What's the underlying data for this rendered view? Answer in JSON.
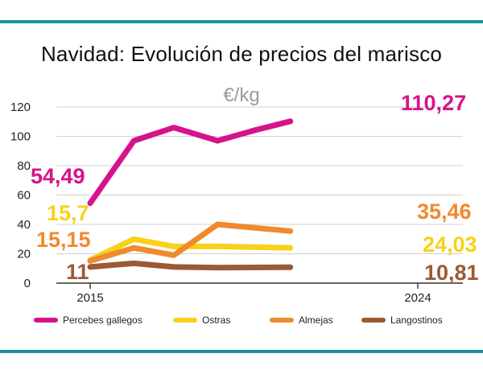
{
  "title": "Navidad: Evolución de precios del marisco",
  "colors": {
    "accent_rule": "#1e8fa0",
    "percebes": "#d6138c",
    "ostras": "#f7d21a",
    "almejas": "#ef8a2d",
    "langostinos": "#9b5a33"
  },
  "chart_data": {
    "type": "line",
    "title": "Navidad: Evolución de precios del marisco",
    "unit_label": "€/kg",
    "x_tick_labels": [
      "2015",
      "2024"
    ],
    "x": [
      2015,
      2016,
      2017,
      2018,
      2019,
      2020,
      2021,
      2022,
      2023,
      2024
    ],
    "ylim": [
      0,
      120
    ],
    "yticks": [
      0,
      20,
      40,
      60,
      80,
      100,
      120
    ],
    "grid": true,
    "legend_position": "bottom",
    "series": [
      {
        "key": "percebes",
        "name": "Percebes gallegos",
        "color": "#d6138c",
        "points": [
          [
            2015,
            54.49
          ],
          [
            2016.2,
            97
          ],
          [
            2017.3,
            106
          ],
          [
            2018.5,
            97
          ],
          [
            2019.5,
            104
          ],
          [
            2020.5,
            110.27
          ]
        ],
        "start_label": "54,49",
        "end_label": "110,27"
      },
      {
        "key": "ostras",
        "name": "Ostras",
        "color": "#f7d21a",
        "points": [
          [
            2015,
            15.7
          ],
          [
            2016.2,
            30
          ],
          [
            2017.3,
            25
          ],
          [
            2018.5,
            25
          ],
          [
            2020.5,
            24.03
          ]
        ],
        "start_label": "15,7",
        "end_label": "24,03"
      },
      {
        "key": "almejas",
        "name": "Almejas",
        "color": "#ef8a2d",
        "points": [
          [
            2015,
            15.15
          ],
          [
            2016.2,
            24
          ],
          [
            2017.3,
            19
          ],
          [
            2018.5,
            40
          ],
          [
            2020.5,
            35.46
          ]
        ],
        "start_label": "15,15",
        "end_label": "35,46"
      },
      {
        "key": "langostinos",
        "name": "Langostinos",
        "color": "#9b5a33",
        "points": [
          [
            2015,
            11
          ],
          [
            2016.2,
            13.5
          ],
          [
            2017.3,
            11
          ],
          [
            2018.5,
            10.5
          ],
          [
            2020.5,
            10.81
          ]
        ],
        "start_label": "11",
        "end_label": "10,81"
      }
    ]
  }
}
